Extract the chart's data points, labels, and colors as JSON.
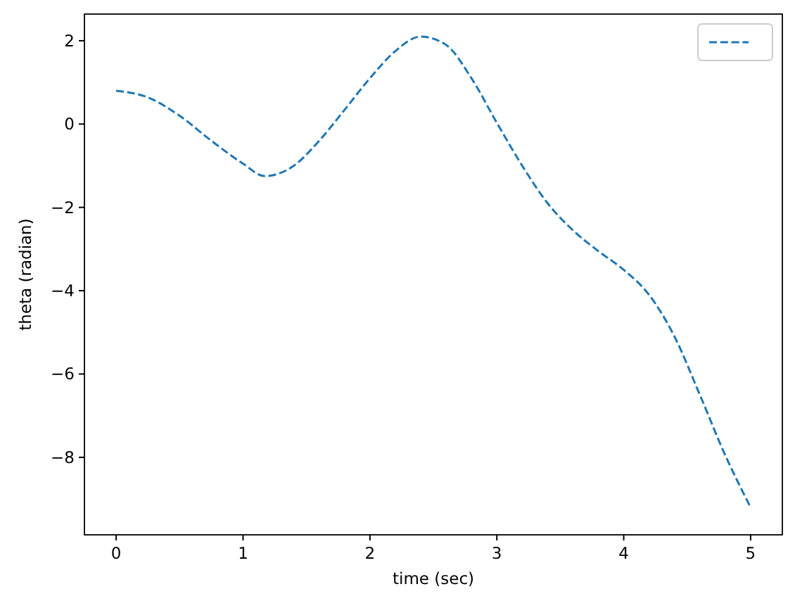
{
  "chart_data": {
    "type": "line",
    "xlabel": "time (sec)",
    "ylabel": "theta (radian)",
    "x": [
      0,
      0.25,
      0.5,
      0.75,
      1.0,
      1.17,
      1.4,
      1.6,
      1.8,
      2.0,
      2.2,
      2.4,
      2.6,
      2.8,
      3.0,
      3.2,
      3.4,
      3.6,
      3.8,
      4.0,
      4.2,
      4.4,
      4.6,
      4.8,
      5.0
    ],
    "series": [
      {
        "color": "#1f77b4",
        "values": [
          0.8,
          0.64,
          0.2,
          -0.4,
          -0.95,
          -1.25,
          -1.0,
          -0.4,
          0.34,
          1.1,
          1.75,
          2.1,
          1.9,
          1.1,
          0.03,
          -1.0,
          -1.9,
          -2.55,
          -3.05,
          -3.5,
          -4.1,
          -5.1,
          -6.5,
          -7.95,
          -9.2
        ]
      }
    ],
    "xlim": [
      -0.25,
      5.25
    ],
    "ylim": [
      -9.86,
      2.64
    ],
    "xticks": [
      0,
      1,
      2,
      3,
      4,
      5
    ],
    "yticks": [
      {
        "value": -8,
        "label": "−8"
      },
      {
        "value": -6,
        "label": "−6"
      },
      {
        "value": -4,
        "label": "−4"
      },
      {
        "value": -2,
        "label": "−2"
      },
      0,
      2
    ],
    "grid": false,
    "line_style": "dashed",
    "marker": "none"
  }
}
